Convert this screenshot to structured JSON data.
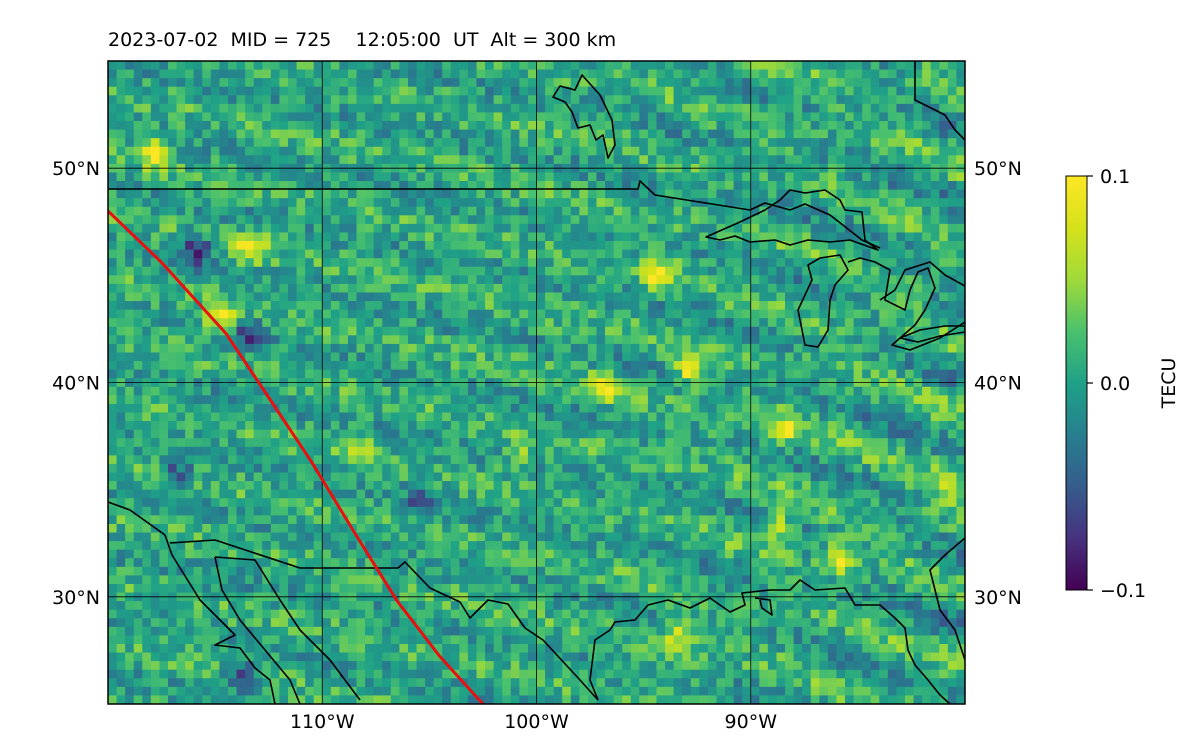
{
  "chart_data": {
    "type": "heatmap",
    "title": "2023-07-02  MID = 725    12:05:00  UT  Alt = 300 km",
    "xlabel": "",
    "ylabel": "",
    "x_range_deg": [
      -120,
      -80
    ],
    "y_range_deg": [
      25,
      55
    ],
    "x_ticks": [
      {
        "value": -110,
        "label": "110°W"
      },
      {
        "value": -100,
        "label": "100°W"
      },
      {
        "value": -90,
        "label": "90°W"
      }
    ],
    "y_ticks": [
      {
        "value": 50,
        "label": "50°N"
      },
      {
        "value": 40,
        "label": "40°N"
      },
      {
        "value": 30,
        "label": "30°N"
      }
    ],
    "grid": true,
    "colormap": "viridis",
    "colorbar": {
      "label": "TECU",
      "min": -0.1,
      "max": 0.1,
      "ticks": [
        {
          "value": 0.1,
          "label": "0.1"
        },
        {
          "value": 0.0,
          "label": "0.0"
        },
        {
          "value": -0.1,
          "label": "−0.1"
        }
      ]
    },
    "overlay_track": {
      "color": "#e8110f",
      "points": [
        [
          -120,
          48
        ],
        [
          -117.5,
          45.6
        ],
        [
          -114.5,
          42.3
        ],
        [
          -112.5,
          39.3
        ],
        [
          -110.5,
          36.3
        ],
        [
          -108.5,
          33
        ],
        [
          -106.5,
          29.8
        ],
        [
          -104.5,
          27.2
        ],
        [
          -102.5,
          25
        ]
      ]
    },
    "coastline_color": "#000000",
    "hotspots": [
      {
        "lon": -94.5,
        "lat": 45.3,
        "v": 0.09
      },
      {
        "lon": -93,
        "lat": 40.8,
        "v": 0.09
      },
      {
        "lon": -88.5,
        "lat": 38,
        "v": 0.07
      },
      {
        "lon": -86,
        "lat": 32,
        "v": 0.08
      },
      {
        "lon": -89,
        "lat": 33.5,
        "v": 0.07
      },
      {
        "lon": -81,
        "lat": 35.5,
        "v": 0.08
      },
      {
        "lon": -93.5,
        "lat": 28.3,
        "v": 0.07
      },
      {
        "lon": -113.5,
        "lat": 46.5,
        "v": 0.08
      },
      {
        "lon": -118,
        "lat": 51,
        "v": 0.09
      },
      {
        "lon": -115,
        "lat": 43.2,
        "v": 0.09
      },
      {
        "lon": -113.5,
        "lat": 42.3,
        "v": -0.08
      },
      {
        "lon": -116,
        "lat": 46.4,
        "v": -0.09
      },
      {
        "lon": -105.5,
        "lat": 34.5,
        "v": -0.06
      },
      {
        "lon": -117,
        "lat": 36,
        "v": -0.06
      },
      {
        "lon": -114,
        "lat": 26.5,
        "v": -0.06
      },
      {
        "lon": -97,
        "lat": 40,
        "v": 0.08
      },
      {
        "lon": -108.5,
        "lat": 37,
        "v": 0.06
      },
      {
        "lon": -101,
        "lat": 36.8,
        "v": 0.05
      }
    ]
  }
}
